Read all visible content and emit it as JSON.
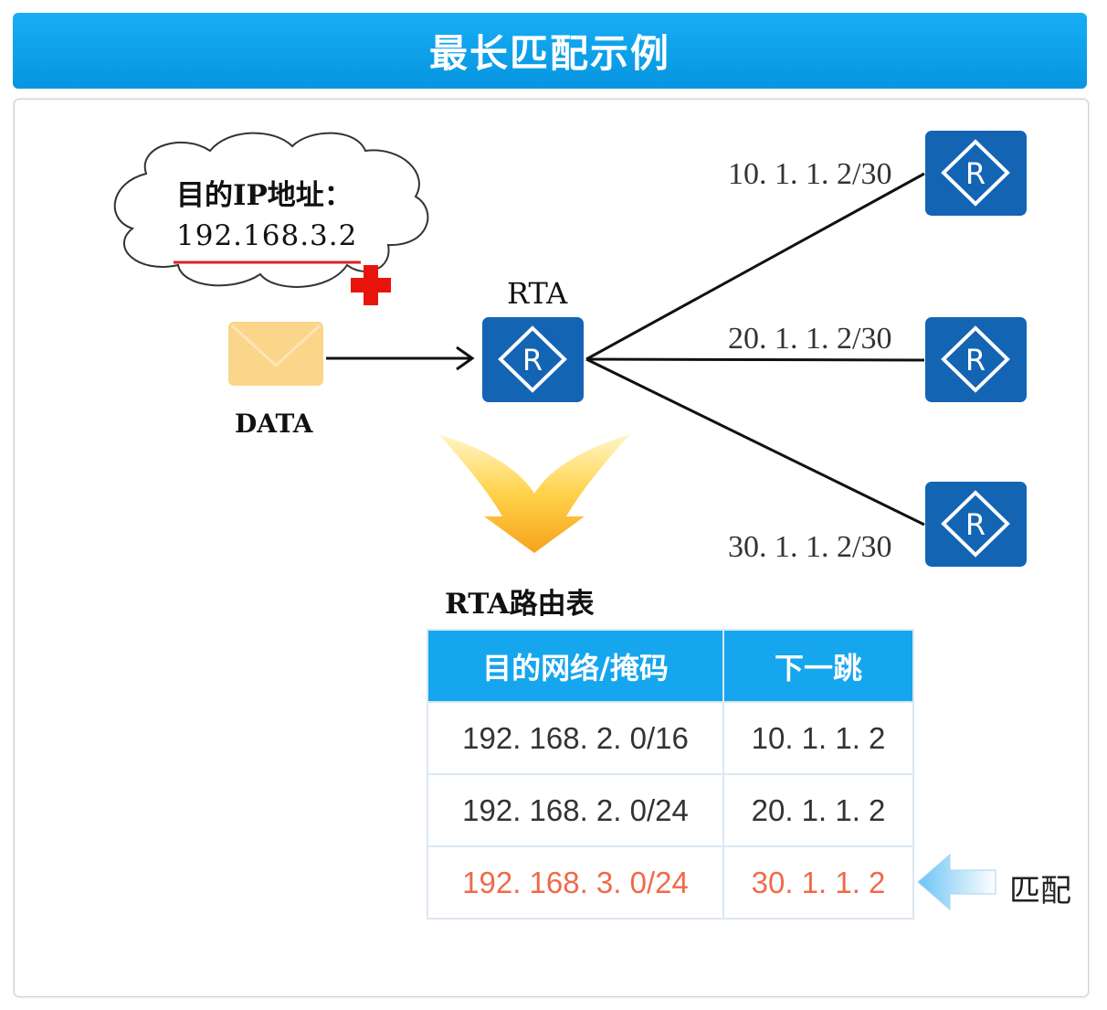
{
  "title": "最长匹配示例",
  "cloud": {
    "label": "目的IP地址：",
    "ip": "192.168.3.2"
  },
  "packet": {
    "label": "DATA",
    "icon": "envelope-icon"
  },
  "rta": {
    "label": "RTA",
    "icon": "router-icon"
  },
  "next_hops": [
    {
      "label": "10. 1. 1. 2/30"
    },
    {
      "label": "20. 1. 1. 2/30"
    },
    {
      "label": "30. 1. 1. 2/30"
    }
  ],
  "table": {
    "caption": "RTA路由表",
    "headers": [
      "目的网络/掩码",
      "下一跳"
    ],
    "rows": [
      [
        "192. 168. 2. 0/16",
        "10. 1. 1. 2"
      ],
      [
        "192. 168. 2. 0/24",
        "20. 1. 1. 2"
      ],
      [
        "192. 168. 3. 0/24",
        "30. 1. 1. 2"
      ]
    ],
    "matched_row": 2
  },
  "match_label": "匹配",
  "colors": {
    "header": "#0aa0e8",
    "router": "#1464b4",
    "match": "#f06a4a",
    "highlight": "#ff0000"
  }
}
